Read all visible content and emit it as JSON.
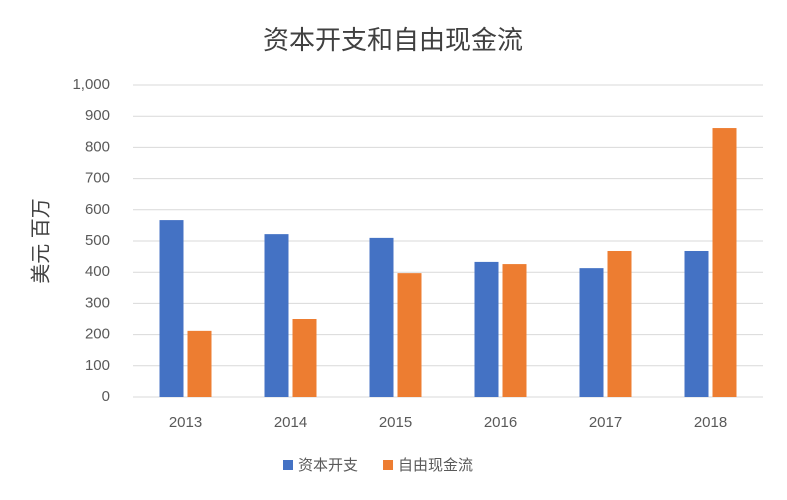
{
  "chart_data": {
    "type": "bar",
    "title": "资本开支和自由现金流",
    "y_label": "美元 百万",
    "categories": [
      "2013",
      "2014",
      "2015",
      "2016",
      "2017",
      "2018"
    ],
    "series": [
      {
        "name": "资本开支",
        "color": "#4472c4",
        "values": [
          567,
          522,
          510,
          433,
          413,
          468
        ]
      },
      {
        "name": "自由现金流",
        "color": "#ed7d31",
        "values": [
          212,
          250,
          397,
          426,
          468,
          862
        ]
      }
    ],
    "ylim": [
      0,
      1000
    ],
    "yticks": [
      0,
      100,
      200,
      300,
      400,
      500,
      600,
      700,
      800,
      900,
      {
        "value": 1000,
        "label": "1,000"
      }
    ],
    "grid": true,
    "legend": "bottom"
  }
}
